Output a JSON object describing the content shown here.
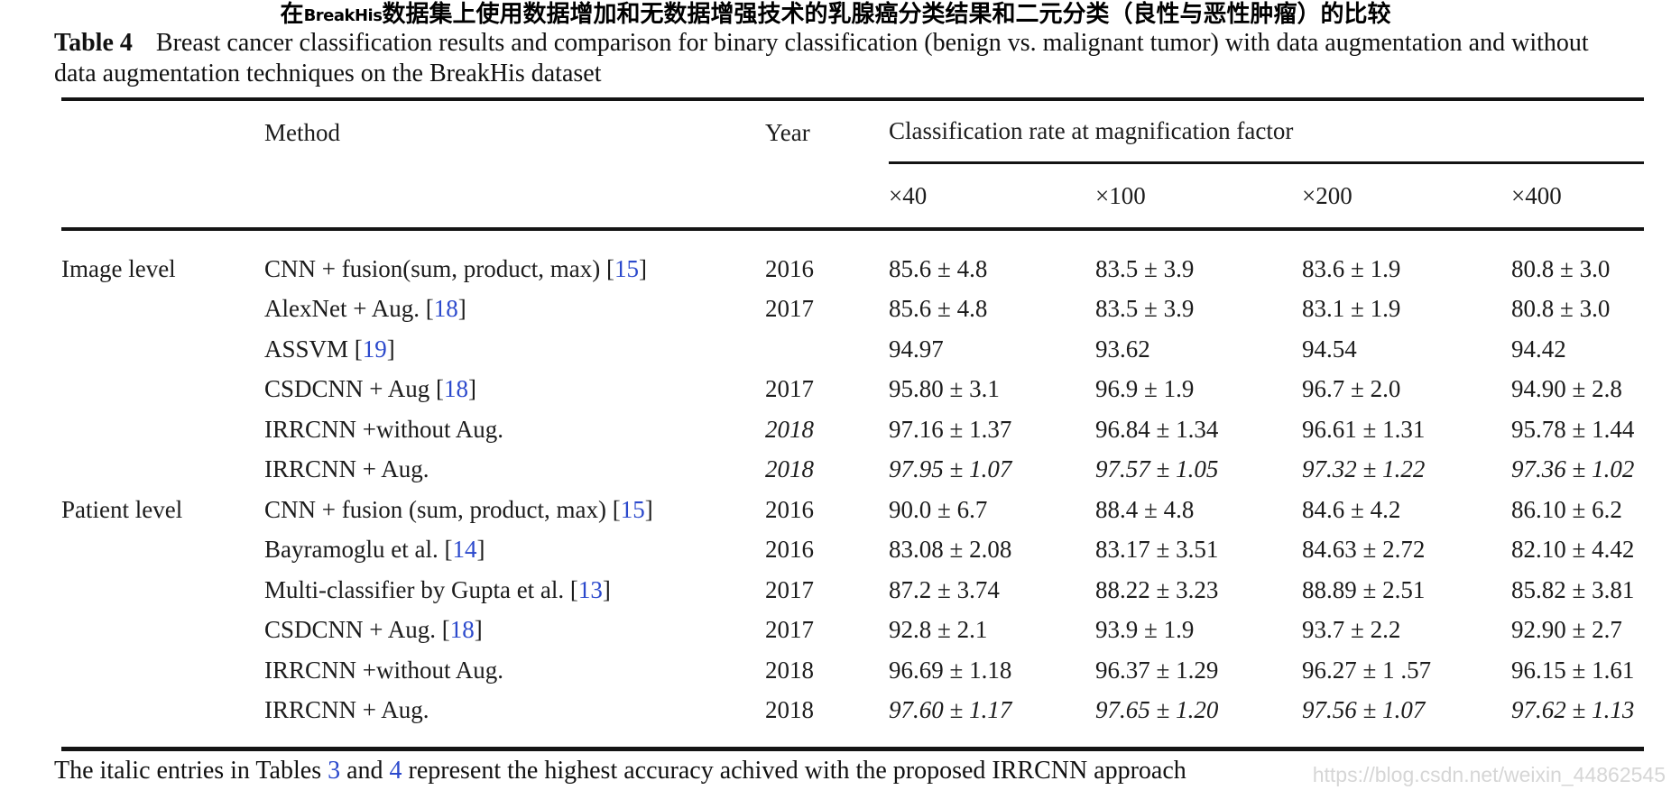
{
  "colors": {
    "link_blue": "#2b49cc",
    "watermark_gray": "#d6d6d6",
    "rule_black": "#141414"
  },
  "cn_title": {
    "prefix": "在",
    "latin": "BreakHis",
    "suffix": "数据集上使用数据增加和无数据增强技术的乳腺癌分类结果和二元分类（良性与恶性肿瘤）的比较"
  },
  "caption": {
    "label": "Table 4",
    "text": "Breast cancer classification results and comparison for binary classification (benign vs. malignant tumor) with data augmentation and without data augmentation techniques on the BreakHis dataset"
  },
  "table": {
    "headers": {
      "method": "Method",
      "year": "Year",
      "span": "Classification rate at magnification factor",
      "mags": [
        "×40",
        "×100",
        "×200",
        "×400"
      ]
    },
    "rows": [
      {
        "group": "Image level",
        "method": "CNN + fusion(sum, product, max) ",
        "ref": {
          "open": "[",
          "num": "15",
          "close": "]"
        },
        "year": "2016",
        "values": [
          "85.6 ± 4.8",
          "83.5 ± 3.9",
          "83.6 ± 1.9",
          "80.8 ± 3.0"
        ]
      },
      {
        "group": "",
        "method": "AlexNet + Aug. ",
        "ref": {
          "open": "[",
          "num": "18",
          "close": "]"
        },
        "year": "2017",
        "values": [
          "85.6 ± 4.8",
          "83.5 ± 3.9",
          "83.1 ± 1.9",
          "80.8 ± 3.0"
        ]
      },
      {
        "group": "",
        "method": "ASSVM ",
        "ref": {
          "open": "[",
          "num": "19",
          "close": "]"
        },
        "year": "",
        "values": [
          "94.97",
          "93.62",
          "94.54",
          "94.42"
        ]
      },
      {
        "group": "",
        "method": "CSDCNN + Aug ",
        "ref": {
          "open": "[",
          "num": "18",
          "close": "]"
        },
        "year": "2017",
        "values": [
          "95.80 ± 3.1",
          "96.9 ± 1.9",
          "96.7 ± 2.0",
          "94.90 ± 2.8"
        ]
      },
      {
        "group": "",
        "method": "IRRCNN +without Aug.",
        "year": "2018",
        "year_italic": true,
        "values": [
          "97.16 ± 1.37",
          "96.84 ± 1.34",
          "96.61 ± 1.31",
          "95.78 ± 1.44"
        ]
      },
      {
        "group": "",
        "method": "IRRCNN + Aug.",
        "year": "2018",
        "year_italic": true,
        "values_italic": true,
        "values": [
          "97.95 ± 1.07",
          "97.57 ± 1.05",
          "97.32 ± 1.22",
          "97.36 ± 1.02"
        ]
      },
      {
        "group": "Patient level",
        "method": "CNN + fusion (sum, product, max) ",
        "ref": {
          "open": "[",
          "num": "15",
          "close": "]"
        },
        "year": "2016",
        "values": [
          "90.0 ± 6.7",
          "88.4 ± 4.8",
          "84.6 ± 4.2",
          "86.10 ± 6.2"
        ]
      },
      {
        "group": "",
        "method": "Bayramoglu et al. ",
        "ref": {
          "open": "[",
          "num": "14",
          "close": "]"
        },
        "year": "2016",
        "values": [
          "83.08 ± 2.08",
          "83.17 ± 3.51",
          "84.63 ± 2.72",
          "82.10 ± 4.42"
        ]
      },
      {
        "group": "",
        "method": "Multi-classifier by Gupta et al. ",
        "ref": {
          "open": "[",
          "num": "13",
          "close": "]"
        },
        "year": "2017",
        "values": [
          "87.2 ± 3.74",
          "88.22 ± 3.23",
          "88.89 ± 2.51",
          "85.82 ± 3.81"
        ]
      },
      {
        "group": "",
        "method": "CSDCNN + Aug. ",
        "ref": {
          "open": "[",
          "num": "18",
          "close": "]"
        },
        "year": "2017",
        "values": [
          "92.8 ± 2.1",
          "93.9 ± 1.9",
          "93.7 ± 2.2",
          "92.90 ± 2.7"
        ]
      },
      {
        "group": "",
        "method": "IRRCNN +without Aug.",
        "year": "2018",
        "values": [
          "96.69 ± 1.18",
          "96.37 ± 1.29",
          "96.27 ± 1 .57",
          "96.15 ± 1.61"
        ]
      },
      {
        "group": "",
        "method": "IRRCNN + Aug.",
        "year": "2018",
        "values_italic": true,
        "values": [
          "97.60 ± 1.17",
          "97.65 ± 1.20",
          "97.56 ± 1.07",
          "97.62 ± 1.13"
        ]
      }
    ]
  },
  "footnote": {
    "prefix": "The italic entries in Tables ",
    "link1": "3",
    "mid": " and ",
    "link2": "4",
    "suffix": " represent the highest accuracy achived with the proposed IRRCNN approach"
  },
  "watermark": "https://blog.csdn.net/weixin_44862545"
}
